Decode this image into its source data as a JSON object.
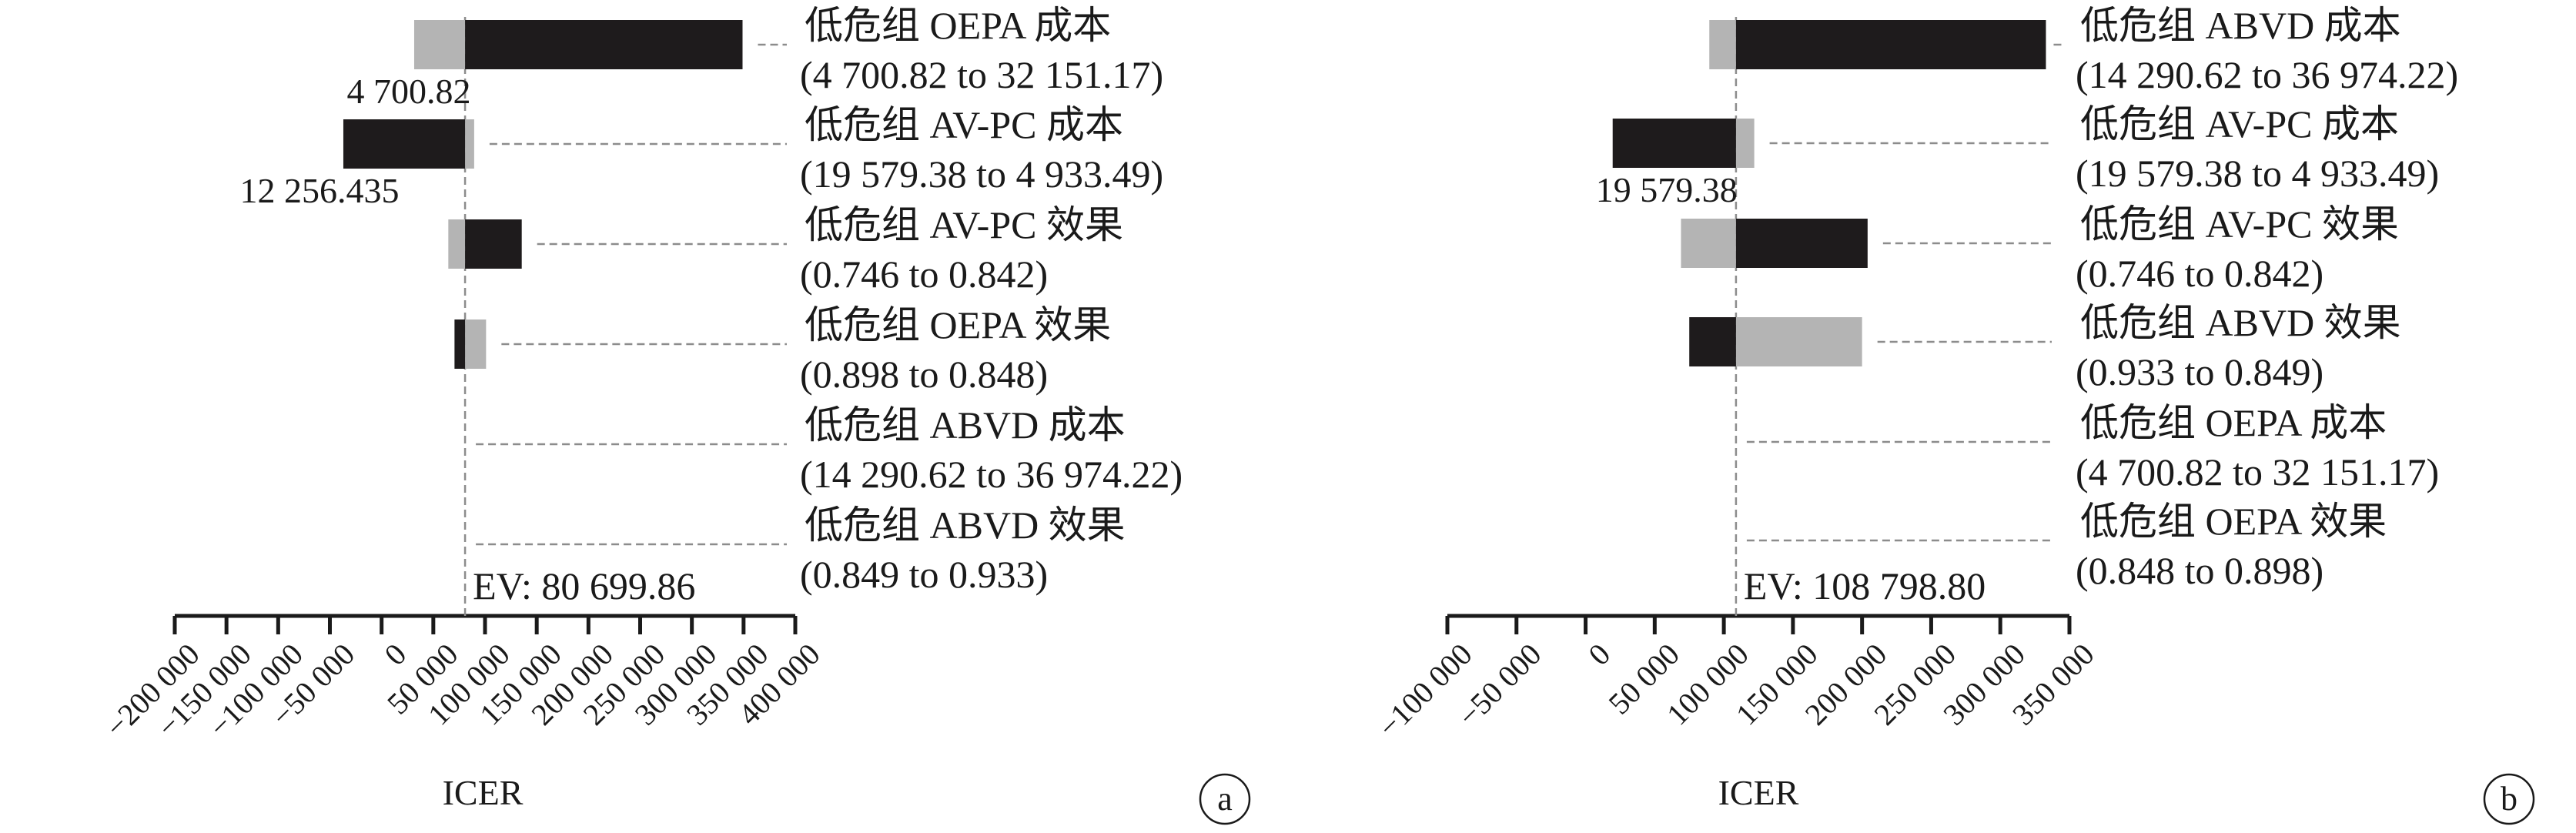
{
  "chart_data": [
    {
      "type": "tornado",
      "panel_label": "a",
      "xlabel": "ICER",
      "xlim": [
        -200000,
        400000
      ],
      "ticks": [
        -200000,
        -150000,
        -100000,
        -50000,
        0,
        50000,
        100000,
        150000,
        200000,
        250000,
        300000,
        350000,
        400000
      ],
      "tick_labels": [
        "−200 000",
        "−150 000",
        "−100 000",
        "−50 000",
        "0",
        "50 000",
        "100 000",
        "150 000",
        "200 000",
        "250 000",
        "300 000",
        "350 000",
        "400 000"
      ],
      "ev": 80699.86,
      "ev_label": "EV: 80 699.86",
      "colors": {
        "dark": "#1e1b1c",
        "light": "#b4b4b4"
      },
      "rows": [
        {
          "name": "低危组 OEPA 成本",
          "range_text": "(4 700.82 to 32 151.17)",
          "dark_end": 349000,
          "light_end": 31500,
          "value_label": "4 700.82"
        },
        {
          "name": "低危组 AV-PC 成本",
          "range_text": "(19 579.38 to 4 933.49)",
          "dark_end": -37000,
          "light_end": 89500,
          "value_label": "12 256.435"
        },
        {
          "name": "低危组 AV-PC 效果",
          "range_text": "(0.746 to 0.842)",
          "dark_end": 135500,
          "light_end": 64500,
          "value_label": ""
        },
        {
          "name": "低危组 OEPA 效果",
          "range_text": "(0.898 to 0.848)",
          "dark_end": 70500,
          "light_end": 101000,
          "value_label": ""
        },
        {
          "name": "低危组 ABVD 成本",
          "range_text": "(14 290.62 to 36 974.22)",
          "dark_end": null,
          "light_end": null,
          "value_label": ""
        },
        {
          "name": "低危组 ABVD 效果",
          "range_text": "(0.849 to 0.933)",
          "dark_end": null,
          "light_end": null,
          "value_label": ""
        }
      ]
    },
    {
      "type": "tornado",
      "panel_label": "b",
      "xlabel": "ICER",
      "xlim": [
        -100000,
        350000
      ],
      "ticks": [
        -100000,
        -50000,
        0,
        50000,
        100000,
        150000,
        200000,
        250000,
        300000,
        350000
      ],
      "tick_labels": [
        "−100 000",
        "−50 000",
        "0",
        "50 000",
        "100 000",
        "150 000",
        "200 000",
        "250 000",
        "300 000",
        "350 000"
      ],
      "ev": 108798.8,
      "ev_label": "EV: 108 798.80",
      "colors": {
        "dark": "#1e1b1c",
        "light": "#b4b4b4"
      },
      "rows": [
        {
          "name": "低危组 ABVD 成本",
          "range_text": "(14 290.62 to 36 974.22)",
          "dark_end": 333000,
          "light_end": 89500,
          "value_label": ""
        },
        {
          "name": "低危组 AV-PC 成本",
          "range_text": "(19 579.38 to 4 933.49)",
          "dark_end": 19579.38,
          "light_end": 122000,
          "value_label": "19 579.38"
        },
        {
          "name": "低危组 AV-PC 效果",
          "range_text": "(0.746 to 0.842)",
          "dark_end": 204000,
          "light_end": 69000,
          "value_label": ""
        },
        {
          "name": "低危组 ABVD 效果",
          "range_text": "(0.933 to 0.849)",
          "dark_end": 75000,
          "light_end": 200000,
          "value_label": ""
        },
        {
          "name": "低危组 OEPA 成本",
          "range_text": "(4 700.82 to 32 151.17)",
          "dark_end": null,
          "light_end": null,
          "value_label": ""
        },
        {
          "name": "低危组 OEPA 效果",
          "range_text": "(0.848 to 0.898)",
          "dark_end": null,
          "light_end": null,
          "value_label": ""
        }
      ]
    }
  ]
}
